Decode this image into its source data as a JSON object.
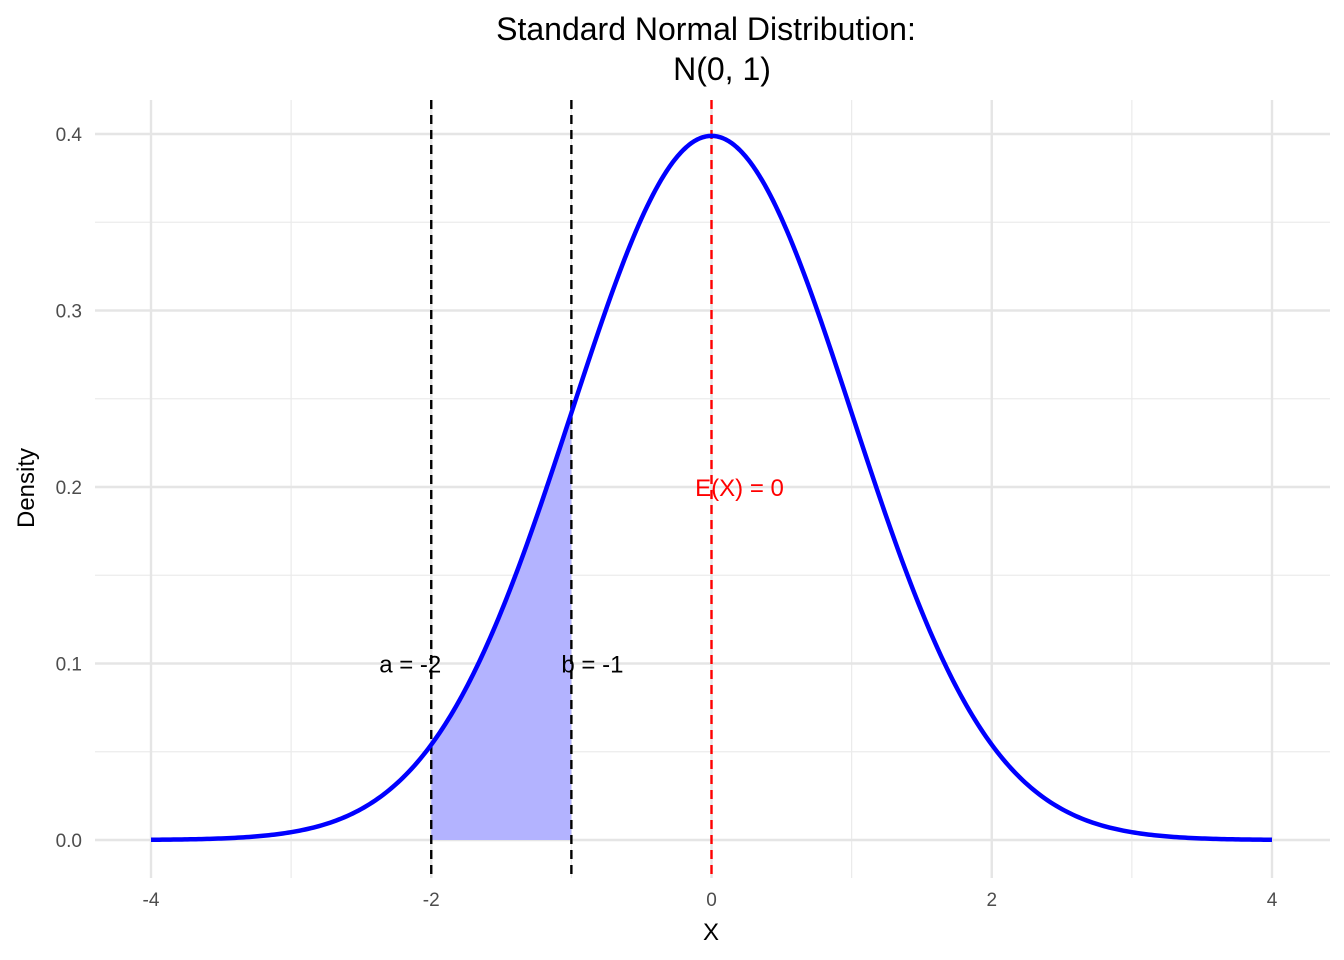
{
  "chart_data": {
    "type": "line",
    "title_line1": "Standard Normal Distribution:",
    "title_line2": "N(0, 1)",
    "xlabel": "X",
    "ylabel": "Density",
    "xlim": [
      -4,
      4
    ],
    "ylim": [
      0,
      0.4
    ],
    "x_ticks": [
      -4,
      -2,
      0,
      2,
      4
    ],
    "x_tick_labels": [
      "-4",
      "-2",
      "0",
      "2",
      "4"
    ],
    "y_ticks": [
      0.0,
      0.1,
      0.2,
      0.3,
      0.4
    ],
    "y_tick_labels": [
      "0.0",
      "0.1",
      "0.2",
      "0.3",
      "0.4"
    ],
    "grid": true,
    "series": [
      {
        "distribution": "normal",
        "mean": 0,
        "sd": 1,
        "x_range": [
          -4,
          4
        ],
        "color": "#0000ff"
      }
    ],
    "shaded_region": {
      "from": -2,
      "to": -1,
      "color": "#b3b3ff"
    },
    "vlines": [
      {
        "x": -2,
        "color": "#000000",
        "style": "dashed"
      },
      {
        "x": -1,
        "color": "#000000",
        "style": "dashed"
      },
      {
        "x": 0,
        "color": "#ff0000",
        "style": "dashed"
      }
    ],
    "annotations": [
      {
        "text": "a = -2",
        "x": -2,
        "y": 0.1,
        "anchor": "end",
        "color": "#000000"
      },
      {
        "text": "b = -1",
        "x": -1,
        "y": 0.1,
        "anchor": "start",
        "color": "#000000"
      },
      {
        "text": "E(X) = 0",
        "x": 0.2,
        "y": 0.2,
        "anchor": "middle",
        "color": "#ff0000"
      }
    ]
  }
}
